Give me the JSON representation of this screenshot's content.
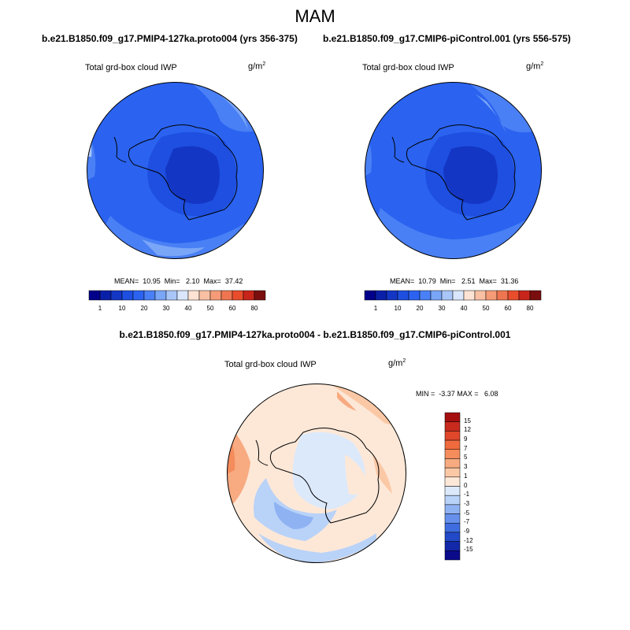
{
  "figure": {
    "season_title": "MAM",
    "diff_title": "b.e21.B1850.f09_g17.PMIP4-127ka.proto004 - b.e21.B1850.f09_g17.CMIP6-piControl.001"
  },
  "panels": [
    {
      "run_title": "b.e21.B1850.f09_g17.PMIP4-127ka.proto004 (yrs 356-375)",
      "variable_label": "Total grd-box cloud IWP",
      "units_base": "g/m",
      "units_exp": "2",
      "stats": "MEAN=  10.95  Min=   2.10  Max=  37.42"
    },
    {
      "run_title": "b.e21.B1850.f09_g17.CMIP6-piControl.001 (yrs 556-575)",
      "variable_label": "Total grd-box cloud IWP",
      "units_base": "g/m",
      "units_exp": "2",
      "stats": "MEAN=  10.79  Min=   2.51  Max=  31.36"
    },
    {
      "variable_label": "Total grd-box cloud IWP",
      "units_base": "g/m",
      "units_exp": "2",
      "stats": "MIN =  -3.37 MAX =   6.08"
    }
  ],
  "chart_data": [
    {
      "type": "heatmap",
      "projection": "south-polar-stereographic",
      "title": "b.e21.B1850.f09_g17.PMIP4-127ka.proto004 (yrs 356-375)",
      "variable": "Total grd-box cloud IWP",
      "units": "g/m2",
      "mean": 10.95,
      "min": 2.1,
      "max": 37.42,
      "colorbar_levels": [
        1,
        5,
        10,
        15,
        20,
        25,
        30,
        35,
        40,
        45,
        50,
        55,
        60,
        70,
        80
      ],
      "colorbar_labels": [
        "1",
        "10",
        "20",
        "30",
        "40",
        "50",
        "60",
        "80"
      ],
      "colorbar_colors": [
        "#00008b",
        "#0a1fa8",
        "#1436c4",
        "#1e4fe0",
        "#2b63f0",
        "#4a80f5",
        "#7aa6f7",
        "#a9c6f8",
        "#d9e6fb",
        "#fde3d3",
        "#f9c0a3",
        "#f59b77",
        "#ef7550",
        "#e84d2c",
        "#c8251a",
        "#7a0e0e"
      ]
    },
    {
      "type": "heatmap",
      "projection": "south-polar-stereographic",
      "title": "b.e21.B1850.f09_g17.CMIP6-piControl.001 (yrs 556-575)",
      "variable": "Total grd-box cloud IWP",
      "units": "g/m2",
      "mean": 10.79,
      "min": 2.51,
      "max": 31.36,
      "colorbar_levels": [
        1,
        5,
        10,
        15,
        20,
        25,
        30,
        35,
        40,
        45,
        50,
        55,
        60,
        70,
        80
      ],
      "colorbar_labels": [
        "1",
        "10",
        "20",
        "30",
        "40",
        "50",
        "60",
        "80"
      ],
      "colorbar_colors": [
        "#00008b",
        "#0a1fa8",
        "#1436c4",
        "#1e4fe0",
        "#2b63f0",
        "#4a80f5",
        "#7aa6f7",
        "#a9c6f8",
        "#d9e6fb",
        "#fde3d3",
        "#f9c0a3",
        "#f59b77",
        "#ef7550",
        "#e84d2c",
        "#c8251a",
        "#7a0e0e"
      ]
    },
    {
      "type": "heatmap",
      "projection": "south-polar-stereographic",
      "title": "b.e21.B1850.f09_g17.PMIP4-127ka.proto004 - b.e21.B1850.f09_g17.CMIP6-piControl.001",
      "variable": "Total grd-box cloud IWP",
      "units": "g/m2",
      "min": -3.37,
      "max": 6.08,
      "colorbar_labels": [
        "15",
        "12",
        "9",
        "7",
        "5",
        "3",
        "1",
        "0",
        "-1",
        "-3",
        "-5",
        "-7",
        "-9",
        "-12",
        "-15"
      ],
      "colorbar_colors": [
        "#a50f0f",
        "#c82a1e",
        "#e0472b",
        "#ef6a3c",
        "#f58c5c",
        "#f8aa80",
        "#fbc8a6",
        "#fde8d8",
        "#dce9fb",
        "#b9d2f8",
        "#8fb2f3",
        "#6690ec",
        "#3f6de0",
        "#2249c8",
        "#1228a8",
        "#0a0a8a"
      ]
    }
  ]
}
